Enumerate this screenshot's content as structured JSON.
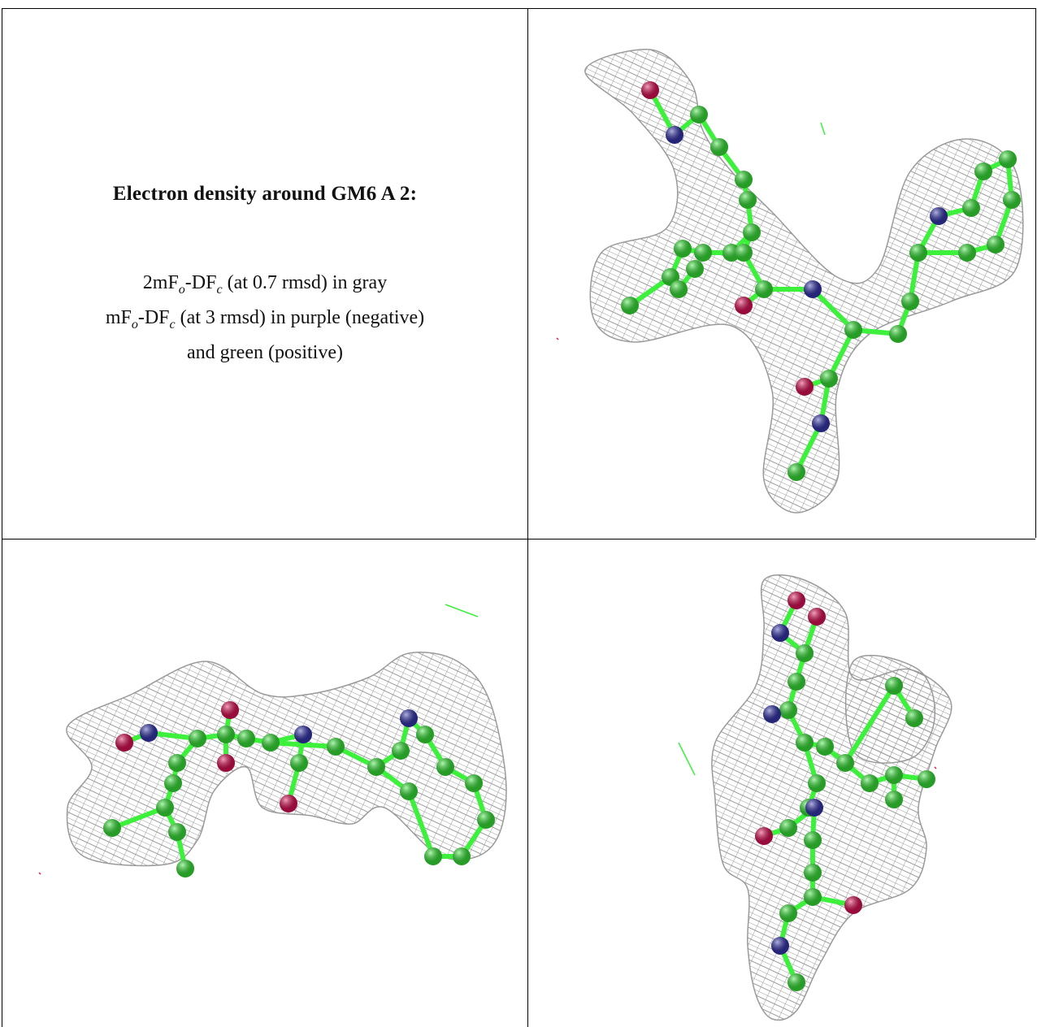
{
  "caption": {
    "title": "Electron density around GM6 A 2:",
    "line1": {
      "pre": "2mF",
      "sub1": "o",
      "mid": "-DF",
      "sub2": "c",
      "post": " (at 0.7 rmsd) in gray"
    },
    "line2": {
      "pre": "mF",
      "sub1": "o",
      "mid": "-DF",
      "sub2": "c",
      "post": " (at 3 rmsd) in purple (negative)"
    },
    "line3": "and green (positive)"
  },
  "colors": {
    "mesh": "#9a9a9a",
    "carbon": "#3cf03c",
    "nitrogen": "#3a3ab8",
    "oxygen": "#e8135c",
    "border": "#000000"
  },
  "panels": [
    {
      "name": "view-1",
      "description_icon": "molecule-density-view"
    },
    {
      "name": "view-2",
      "description_icon": "molecule-density-view"
    },
    {
      "name": "view-3",
      "description_icon": "molecule-density-view"
    }
  ]
}
